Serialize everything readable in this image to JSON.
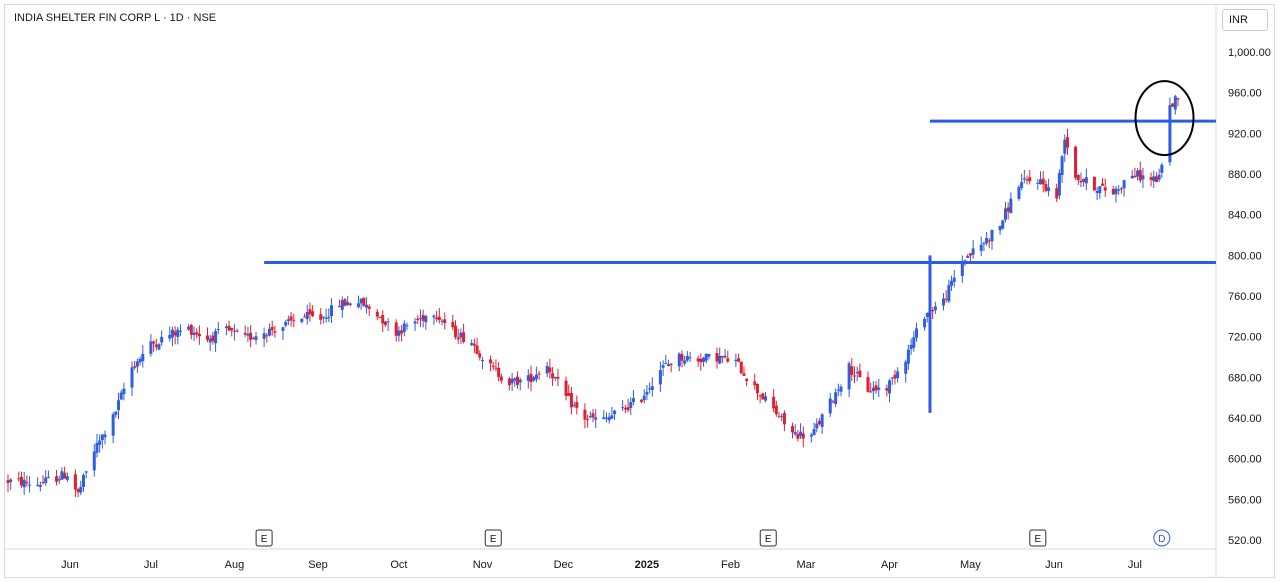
{
  "header": {
    "title": "INDIA SHELTER FIN CORP L · 1D · NSE",
    "currency": "INR"
  },
  "colors": {
    "up": "#2f5fe0",
    "down": "#e0202f",
    "line": "#2e5be6",
    "axis": "#d7dae0",
    "circle": "#000000"
  },
  "chart_data": {
    "type": "candlestick",
    "title": "INDIA SHELTER FIN CORP L · 1D · NSE",
    "ylim": [
      510,
      1030
    ],
    "y_ticks": [
      "1,000.00",
      "960.00",
      "920.00",
      "880.00",
      "840.00",
      "800.00",
      "760.00",
      "720.00",
      "680.00",
      "640.00",
      "600.00",
      "560.00",
      "520.00"
    ],
    "y_tick_values": [
      1000,
      960,
      920,
      880,
      840,
      800,
      760,
      720,
      680,
      640,
      600,
      560,
      520
    ],
    "x_ticks": [
      {
        "label": "Jun",
        "date": "2024-06-01"
      },
      {
        "label": "Jul",
        "date": "2024-07-01"
      },
      {
        "label": "Aug",
        "date": "2024-08-01"
      },
      {
        "label": "Sep",
        "date": "2024-09-01"
      },
      {
        "label": "Oct",
        "date": "2024-10-01"
      },
      {
        "label": "Nov",
        "date": "2024-11-01"
      },
      {
        "label": "Dec",
        "date": "2024-12-01"
      },
      {
        "label": "2025",
        "date": "2025-01-01"
      },
      {
        "label": "Feb",
        "date": "2025-02-01"
      },
      {
        "label": "Mar",
        "date": "2025-03-01"
      },
      {
        "label": "Apr",
        "date": "2025-04-01"
      },
      {
        "label": "May",
        "date": "2025-05-01"
      },
      {
        "label": "Jun",
        "date": "2025-06-01"
      },
      {
        "label": "Jul",
        "date": "2025-07-01"
      }
    ],
    "x_range": [
      "2024-05-09",
      "2025-07-17"
    ],
    "close_path": [
      [
        "2024-05-09",
        578
      ],
      [
        "2024-05-20",
        575
      ],
      [
        "2024-05-31",
        585
      ],
      [
        "2024-06-04",
        565
      ],
      [
        "2024-06-10",
        608
      ],
      [
        "2024-06-17",
        640
      ],
      [
        "2024-06-24",
        690
      ],
      [
        "2024-07-01",
        712
      ],
      [
        "2024-07-08",
        722
      ],
      [
        "2024-07-15",
        728
      ],
      [
        "2024-07-22",
        718
      ],
      [
        "2024-07-29",
        726
      ],
      [
        "2024-08-05",
        718
      ],
      [
        "2024-08-12",
        725
      ],
      [
        "2024-08-19",
        730
      ],
      [
        "2024-08-26",
        740
      ],
      [
        "2024-09-02",
        738
      ],
      [
        "2024-09-09",
        752
      ],
      [
        "2024-09-16",
        755
      ],
      [
        "2024-09-23",
        742
      ],
      [
        "2024-09-30",
        725
      ],
      [
        "2024-10-07",
        735
      ],
      [
        "2024-10-14",
        745
      ],
      [
        "2024-10-21",
        725
      ],
      [
        "2024-10-28",
        715
      ],
      [
        "2024-11-04",
        690
      ],
      [
        "2024-11-11",
        675
      ],
      [
        "2024-11-18",
        678
      ],
      [
        "2024-11-25",
        692
      ],
      [
        "2024-12-02",
        660
      ],
      [
        "2024-12-09",
        640
      ],
      [
        "2024-12-16",
        638
      ],
      [
        "2024-12-23",
        648
      ],
      [
        "2024-12-30",
        660
      ],
      [
        "2025-01-06",
        688
      ],
      [
        "2025-01-13",
        700
      ],
      [
        "2025-01-20",
        698
      ],
      [
        "2025-01-27",
        700
      ],
      [
        "2025-02-03",
        695
      ],
      [
        "2025-02-10",
        670
      ],
      [
        "2025-02-17",
        648
      ],
      [
        "2025-02-24",
        625
      ],
      [
        "2025-03-03",
        622
      ],
      [
        "2025-03-10",
        655
      ],
      [
        "2025-03-17",
        690
      ],
      [
        "2025-03-24",
        668
      ],
      [
        "2025-03-31",
        670
      ],
      [
        "2025-04-07",
        700
      ],
      [
        "2025-04-14",
        742
      ],
      [
        "2025-04-21",
        755
      ],
      [
        "2025-04-28",
        795
      ],
      [
        "2025-05-05",
        810
      ],
      [
        "2025-05-12",
        830
      ],
      [
        "2025-05-19",
        870
      ],
      [
        "2025-05-26",
        875
      ],
      [
        "2025-06-02",
        858
      ],
      [
        "2025-06-05",
        918
      ],
      [
        "2025-06-09",
        878
      ],
      [
        "2025-06-16",
        868
      ],
      [
        "2025-06-23",
        862
      ],
      [
        "2025-06-30",
        880
      ],
      [
        "2025-07-07",
        875
      ],
      [
        "2025-07-10",
        875
      ],
      [
        "2025-07-14",
        945
      ],
      [
        "2025-07-17",
        958
      ]
    ],
    "volatility": 10,
    "annotations": {
      "resistance_old": {
        "price": 793,
        "from": "2024-08-12",
        "to": "2025-07-17"
      },
      "resistance_new": {
        "price": 932,
        "from": "2025-04-16",
        "to": "2025-07-17"
      },
      "vertical_line": {
        "date": "2025-04-16",
        "from_price": 645,
        "to_price": 800
      },
      "circle": {
        "date": "2025-07-12",
        "price": 935
      }
    },
    "event_markers": [
      {
        "label": "E",
        "date": "2024-08-12"
      },
      {
        "label": "E",
        "date": "2024-11-05"
      },
      {
        "label": "E",
        "date": "2025-02-15"
      },
      {
        "label": "E",
        "date": "2025-05-26"
      },
      {
        "label": "D",
        "date": "2025-07-11"
      }
    ]
  }
}
